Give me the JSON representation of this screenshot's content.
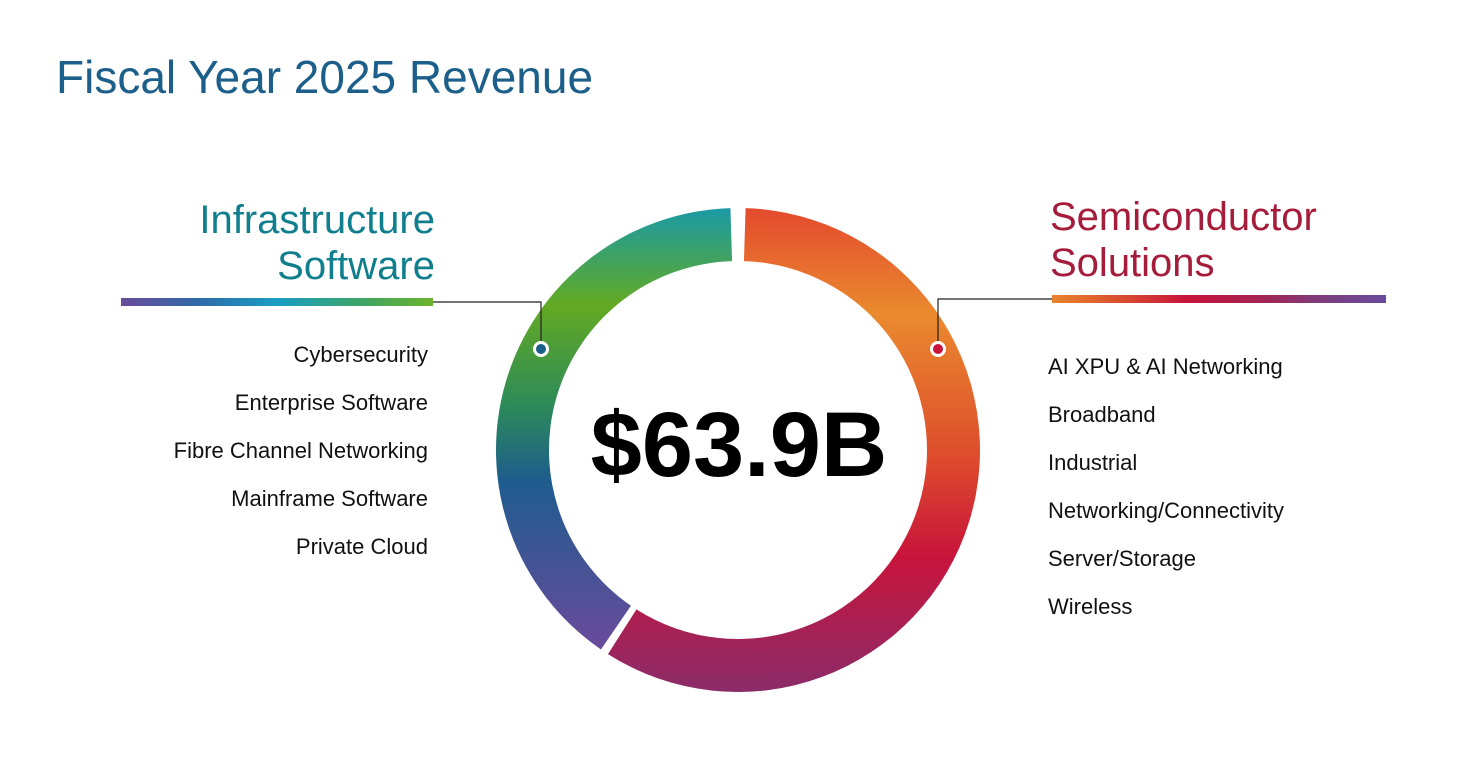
{
  "title": "Fiscal Year 2025 Revenue",
  "total": "$63.9B",
  "segments": {
    "infrastructure_software": {
      "title_lines": [
        "Infrastructure",
        "Software"
      ],
      "color": "#0f7f8e",
      "items": [
        "Cybersecurity",
        "Enterprise Software",
        "Fibre Channel Networking",
        "Mainframe Software",
        "Private Cloud"
      ]
    },
    "semiconductor_solutions": {
      "title_lines": [
        "Semiconductor",
        "Solutions"
      ],
      "color": "#a51d3b",
      "items": [
        "AI XPU & AI Networking",
        "Broadband",
        "Industrial",
        "Networking/Connectivity",
        "Server/Storage",
        "Wireless"
      ]
    }
  },
  "colors": {
    "title": "#1b5f8a",
    "software_gradient": [
      "#6a4b9b",
      "#1e5c8e",
      "#2c8a5a",
      "#63aa22",
      "#1a9aa6"
    ],
    "semiconductor_gradient": [
      "#e44a2e",
      "#ea8a2e",
      "#dd4a2c",
      "#c8143b",
      "#8a2c6a"
    ],
    "software_marker": "#1b5f8a",
    "semiconductor_marker": "#c8143b"
  }
}
